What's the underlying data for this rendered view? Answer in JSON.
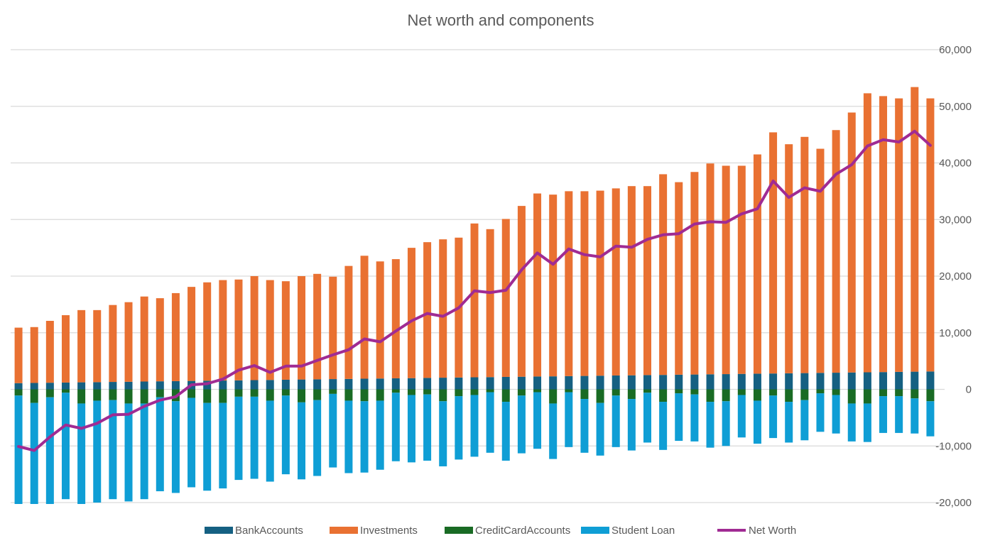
{
  "chart_data": {
    "type": "bar",
    "stacked": true,
    "title": "Net worth and components",
    "xlabel": "",
    "ylabel": "",
    "ylim": [
      -20000,
      60000
    ],
    "y_ticks": [
      "-20,000",
      "-10,000",
      "0",
      "10,000",
      "20,000",
      "30,000",
      "40,000",
      "50,000",
      "60,000"
    ],
    "y_tick_values": [
      -20000,
      -10000,
      0,
      10000,
      20000,
      30000,
      40000,
      50000,
      60000
    ],
    "y_axis_side": "right",
    "grid": true,
    "legend_position": "bottom",
    "series": [
      {
        "name": "BankAccounts",
        "type": "bar",
        "color": "#156082",
        "values": [
          1100,
          1130,
          1170,
          1200,
          1240,
          1270,
          1310,
          1340,
          1380,
          1420,
          1450,
          1490,
          1520,
          1560,
          1590,
          1630,
          1660,
          1700,
          1740,
          1770,
          1810,
          1840,
          1880,
          1910,
          1950,
          1980,
          2020,
          2060,
          2090,
          2130,
          2160,
          2200,
          2230,
          2270,
          2300,
          2340,
          2370,
          2410,
          2450,
          2480,
          2520,
          2550,
          2590,
          2620,
          2660,
          2690,
          2730,
          2770,
          2800,
          2840,
          2870,
          2910,
          2940,
          2980,
          3010,
          3050,
          3090,
          3120,
          3160
        ]
      },
      {
        "name": "Investments",
        "type": "bar",
        "color": "#E97132",
        "values": [
          9800,
          9870,
          10930,
          11900,
          12760,
          12730,
          13590,
          14060,
          15020,
          14680,
          15550,
          16610,
          17380,
          17740,
          17810,
          18370,
          17640,
          17400,
          18260,
          18630,
          18090,
          19960,
          21720,
          20690,
          21050,
          23020,
          23980,
          24440,
          24710,
          27170,
          26140,
          27900,
          30170,
          32330,
          32100,
          32660,
          32630,
          32690,
          33050,
          33420,
          33380,
          35450,
          34010,
          35780,
          37240,
          36810,
          36770,
          38730,
          42600,
          40460,
          41730,
          39590,
          42860,
          45920,
          49290,
          48750,
          48310,
          50280,
          48240
        ]
      },
      {
        "name": "CreditCardAccounts",
        "type": "bar",
        "color": "#196B24",
        "values": [
          -1100,
          -2400,
          -1400,
          -600,
          -2500,
          -2000,
          -1900,
          -2500,
          -2500,
          -1400,
          -2100,
          -1500,
          -2400,
          -2400,
          -1300,
          -1300,
          -2000,
          -1100,
          -2300,
          -1900,
          -800,
          -2000,
          -2100,
          -2000,
          -600,
          -1000,
          -900,
          -2100,
          -1200,
          -1000,
          -500,
          -2200,
          -1100,
          -500,
          -2500,
          -500,
          -1700,
          -2400,
          -1100,
          -1700,
          -600,
          -2200,
          -700,
          -900,
          -2200,
          -2100,
          -1000,
          -2000,
          -1100,
          -2200,
          -1900,
          -700,
          -1000,
          -2500,
          -2500,
          -1200,
          -1200,
          -1600,
          -2100
        ]
      },
      {
        "name": "Student Loan",
        "type": "bar",
        "color": "#0F9ED5",
        "values": [
          -19900,
          -19400,
          -19100,
          -18800,
          -18400,
          -18000,
          -17500,
          -17300,
          -16900,
          -16600,
          -16200,
          -15800,
          -15500,
          -15100,
          -14700,
          -14500,
          -14300,
          -13900,
          -13600,
          -13400,
          -13000,
          -12800,
          -12600,
          -12200,
          -12100,
          -11900,
          -11700,
          -11500,
          -11200,
          -10900,
          -10700,
          -10400,
          -10200,
          -10000,
          -9800,
          -9700,
          -9500,
          -9300,
          -9100,
          -9100,
          -8800,
          -8500,
          -8400,
          -8300,
          -8100,
          -7900,
          -7500,
          -7600,
          -7500,
          -7200,
          -7100,
          -6800,
          -6800,
          -6700,
          -6800,
          -6500,
          -6500,
          -6200,
          -6200
        ]
      },
      {
        "name": "Net Worth",
        "type": "line",
        "color": "#A02B93",
        "values": [
          -10100,
          -10800,
          -8400,
          -6300,
          -6900,
          -6000,
          -4500,
          -4400,
          -3000,
          -1900,
          -1300,
          800,
          1000,
          1800,
          3400,
          4200,
          3000,
          4100,
          4100,
          5100,
          6100,
          7000,
          8900,
          8400,
          10300,
          12100,
          13400,
          12900,
          14400,
          17400,
          17100,
          17500,
          21100,
          24100,
          22100,
          24800,
          23800,
          23400,
          25300,
          25100,
          26500,
          27300,
          27500,
          29200,
          29600,
          29500,
          31000,
          31900,
          36800,
          33900,
          35600,
          35000,
          38000,
          39700,
          43000,
          44100,
          43700,
          45600,
          43100
        ]
      }
    ]
  }
}
